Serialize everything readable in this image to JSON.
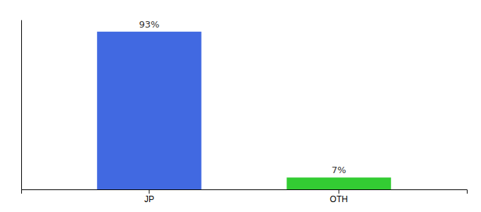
{
  "chart_data": {
    "type": "bar",
    "categories": [
      "JP",
      "OTH"
    ],
    "values": [
      93,
      7
    ],
    "value_labels": [
      "93%",
      "7%"
    ],
    "colors": [
      "#4169e1",
      "#33cc33"
    ],
    "ylim": [
      0,
      100
    ],
    "data_labels": true,
    "tick_labels": "x"
  }
}
